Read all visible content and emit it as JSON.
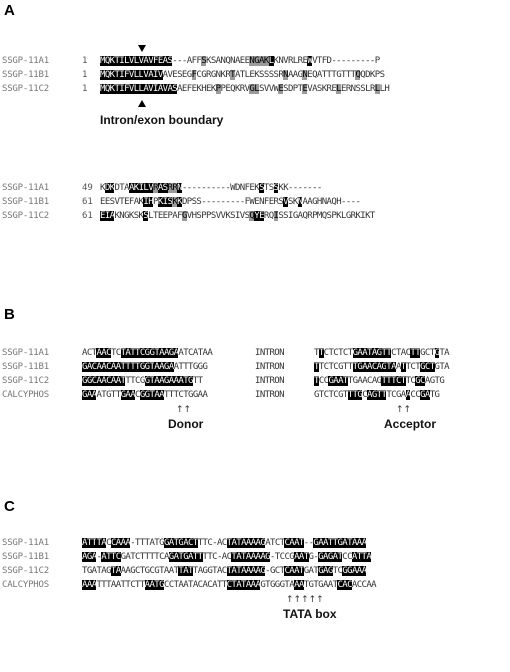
{
  "panels": {
    "a": {
      "label": "A",
      "block1": {
        "rows": [
          {
            "name": "SSGP-11A1",
            "start": "1",
            "segs": [
              [
                "b",
                "MQKTILVL"
              ],
              [
                "b",
                "VAVFEAS"
              ],
              [
                "n",
                "---AFF"
              ],
              [
                "g",
                "S"
              ],
              [
                "n",
                "KSANQNAEE"
              ],
              [
                "g",
                "NGAK"
              ],
              [
                "b",
                "L"
              ],
              [
                "n",
                "KNVRLRE"
              ],
              [
                "b",
                "W"
              ],
              [
                "n",
                "VTFD---------P"
              ]
            ]
          },
          {
            "name": "SSGP-11B1",
            "start": "1",
            "segs": [
              [
                "b",
                "MQKTIFVLL"
              ],
              [
                "b",
                "VAIV"
              ],
              [
                "n",
                "AVESEG"
              ],
              [
                "g",
                "F"
              ],
              [
                "n",
                "CGRGNKR"
              ],
              [
                "g",
                "T"
              ],
              [
                "n",
                "ATLEKSSSSR"
              ],
              [
                "g",
                "N"
              ],
              [
                "n",
                "AAG"
              ],
              [
                "g",
                "N"
              ],
              [
                "n",
                "EQATTTGTTT"
              ],
              [
                "g",
                "Q"
              ],
              [
                "n",
                "QDKPS"
              ]
            ]
          },
          {
            "name": "SSGP-11C2",
            "start": "1",
            "segs": [
              [
                "b",
                "MQKTIFVLLAVI"
              ],
              [
                "b",
                "AVAS"
              ],
              [
                "n",
                "AEFEKHEK"
              ],
              [
                "g",
                "P"
              ],
              [
                "n",
                "PEQKRV"
              ],
              [
                "g",
                "GL"
              ],
              [
                "n",
                "SVVW"
              ],
              [
                "g",
                "E"
              ],
              [
                "n",
                "SDPT"
              ],
              [
                "g",
                "E"
              ],
              [
                "n",
                "VASKRE"
              ],
              [
                "g",
                "L"
              ],
              [
                "n",
                "ERNSSLR"
              ],
              [
                "g",
                "L"
              ],
              [
                "n",
                "LH"
              ]
            ]
          }
        ],
        "callout": "Intron/exon boundary"
      },
      "block2": {
        "rows": [
          {
            "name": "SSGP-11A1",
            "start": "49",
            "segs": [
              [
                "n",
                "K"
              ],
              [
                "b",
                "DK"
              ],
              [
                "n",
                "DTA"
              ],
              [
                "b",
                "AKILV"
              ],
              [
                "g",
                "R"
              ],
              [
                "b",
                "AS"
              ],
              [
                "g",
                "RR"
              ],
              [
                "b",
                "N"
              ],
              [
                "n",
                "----------WDNFEK"
              ],
              [
                "b",
                "S"
              ],
              [
                "n",
                "TS"
              ],
              [
                "b",
                "S"
              ],
              [
                "n",
                "KK-------"
              ]
            ]
          },
          {
            "name": "SSGP-11B1",
            "start": "61",
            "segs": [
              [
                "n",
                "EE"
              ],
              [
                "n",
                "SVTEFAK"
              ],
              [
                "b",
                "IH"
              ],
              [
                "n",
                "P"
              ],
              [
                "b",
                "KIS"
              ],
              [
                "g",
                "K"
              ],
              [
                "b",
                "K"
              ],
              [
                "n",
                "DPSS---------FWENFERS"
              ],
              [
                "b",
                "V"
              ],
              [
                "n",
                "SK"
              ],
              [
                "b",
                "N"
              ],
              [
                "n",
                "AAGHNAQH----"
              ]
            ]
          },
          {
            "name": "SSGP-11C2",
            "start": "61",
            "segs": [
              [
                "b",
                "EIA"
              ],
              [
                "n",
                "KNGKSK"
              ],
              [
                "b",
                "S"
              ],
              [
                "n",
                "LTEEPAF"
              ],
              [
                "g",
                "G"
              ],
              [
                "n",
                "VHSPPSVVKSIVS"
              ],
              [
                "g",
                "Q"
              ],
              [
                "b",
                "YE"
              ],
              [
                "n",
                "RQ"
              ],
              [
                "g",
                "I"
              ],
              [
                "n",
                "SSIGAQRPMQSPKLGRKIKT"
              ]
            ]
          }
        ]
      }
    },
    "b": {
      "label": "B",
      "rows": [
        {
          "name": "SSGP-11A1",
          "left": [
            [
              "n",
              "ACT"
            ],
            [
              "b",
              "AAC"
            ],
            [
              "n",
              "TC"
            ],
            [
              "b",
              "TATTCG"
            ],
            [
              "b",
              "GT"
            ],
            [
              "b",
              "AAGA"
            ],
            [
              "n",
              "ATCATAA"
            ]
          ],
          "intron": "INTRON",
          "right": [
            [
              "n",
              "T"
            ],
            [
              "b",
              "T"
            ],
            [
              "n",
              "CTCTCT"
            ],
            [
              "b",
              "GAAT"
            ],
            [
              "b",
              "AG"
            ],
            [
              "b",
              "TT"
            ],
            [
              "n",
              "CTAC"
            ],
            [
              "b",
              "TT"
            ],
            [
              "n",
              "GCT"
            ],
            [
              "b",
              "G"
            ],
            [
              "n",
              "TA"
            ]
          ]
        },
        {
          "name": "SSGP-11B1",
          "left": [
            [
              "b",
              "GACAACAATT"
            ],
            [
              "b",
              "TTG"
            ],
            [
              "b",
              "GT"
            ],
            [
              "b",
              "AAGA"
            ],
            [
              "n",
              "ATTTGGG"
            ]
          ],
          "intron": "INTRON",
          "right": [
            [
              "b",
              "T"
            ],
            [
              "n",
              "TCTCGTT"
            ],
            [
              "b",
              "TGAAC"
            ],
            [
              "b",
              "AG"
            ],
            [
              "b",
              "TA"
            ],
            [
              "n",
              "A"
            ],
            [
              "b",
              "T"
            ],
            [
              "n",
              "TCT"
            ],
            [
              "b",
              "GCT"
            ],
            [
              "n",
              "GTA"
            ]
          ]
        },
        {
          "name": "SSGP-11C2",
          "left": [
            [
              "b",
              "GGCAACAAT"
            ],
            [
              "n",
              "TTCG"
            ],
            [
              "b",
              "GT"
            ],
            [
              "b",
              "AAGA"
            ],
            [
              "b",
              "AATG"
            ],
            [
              "n",
              "TT"
            ]
          ],
          "intron": "INTRON",
          "right": [
            [
              "b",
              "T"
            ],
            [
              "n",
              "CC"
            ],
            [
              "b",
              "GAAT"
            ],
            [
              "n",
              "TGAACAG"
            ],
            [
              "b",
              "TT"
            ],
            [
              "b",
              "TCT"
            ],
            [
              "n",
              "TC"
            ],
            [
              "b",
              "GC"
            ],
            [
              "n",
              "AGTG"
            ]
          ]
        },
        {
          "name": "CALCYPHOS",
          "left": [
            [
              "b",
              "GAA"
            ],
            [
              "n",
              "ATGTT"
            ],
            [
              "b",
              "GAA"
            ],
            [
              "n",
              "C"
            ],
            [
              "b",
              "GGTAA"
            ],
            [
              "n",
              "TTTCTGGAA"
            ]
          ],
          "intron": "INTRON",
          "right": [
            [
              "n",
              "GTCTCGT"
            ],
            [
              "b",
              "TTG"
            ],
            [
              "n",
              "C"
            ],
            [
              "b",
              "AG"
            ],
            [
              "b",
              "TT"
            ],
            [
              "n",
              "TCGA"
            ],
            [
              "b",
              "A"
            ],
            [
              "n",
              "CC"
            ],
            [
              "b",
              "GA"
            ],
            [
              "n",
              "TG"
            ]
          ]
        }
      ],
      "donor_label": "Donor",
      "acceptor_label": "Acceptor",
      "donor_arrows": "↑↑",
      "acceptor_arrows": "↑↑"
    },
    "c": {
      "label": "C",
      "rows": [
        {
          "name": "SSGP-11A1",
          "segs": [
            [
              "b",
              "ATT"
            ],
            [
              "b",
              "TA"
            ],
            [
              "n",
              "C"
            ],
            [
              "b",
              "CAAA"
            ],
            [
              "n",
              "-TTTATG"
            ],
            [
              "b",
              "GATG"
            ],
            [
              "b",
              "ACT"
            ],
            [
              "n",
              "TTC-"
            ],
            [
              "n",
              "AC"
            ],
            [
              "b",
              "TATAA"
            ],
            [
              "b",
              "AAG"
            ],
            [
              "n",
              "ATCT"
            ],
            [
              "b",
              "CAAT"
            ],
            [
              "n",
              "--"
            ],
            [
              "b",
              "GAAT"
            ],
            [
              "b",
              "TGATAAA"
            ]
          ]
        },
        {
          "name": "SSGP-11B1",
          "segs": [
            [
              "b",
              "AGA"
            ],
            [
              "n",
              "-"
            ],
            [
              "b",
              "ATTC"
            ],
            [
              "n",
              "GATCTTTTCA"
            ],
            [
              "b",
              "GATGATT"
            ],
            [
              "n",
              "TTC-"
            ],
            [
              "n",
              "AC"
            ],
            [
              "b",
              "TATAA"
            ],
            [
              "b",
              "AAG"
            ],
            [
              "n",
              "-TCCG"
            ],
            [
              "b",
              "AAT"
            ],
            [
              "n",
              "G-"
            ],
            [
              "b",
              "GAGAT"
            ],
            [
              "n",
              "CC"
            ],
            [
              "b",
              "ATTA"
            ]
          ]
        },
        {
          "name": "SSGP-11C2",
          "segs": [
            [
              "n",
              "TGATAG"
            ],
            [
              "b",
              "TA"
            ],
            [
              "n",
              "AAGC"
            ],
            [
              "n",
              "TGCGTAAT"
            ],
            [
              "b",
              "TAT"
            ],
            [
              "n",
              "TAGGTAC"
            ],
            [
              "b",
              "TATAA"
            ],
            [
              "b",
              "AAG"
            ],
            [
              "n",
              "-GCT"
            ],
            [
              "b",
              "CAAT"
            ],
            [
              "n",
              "GAT"
            ],
            [
              "b",
              "GAG"
            ],
            [
              "n",
              "TC"
            ],
            [
              "b",
              "GGAAA"
            ]
          ]
        },
        {
          "name": "CALCYPHOS",
          "segs": [
            [
              "b",
              "AAA"
            ],
            [
              "n",
              "TTTAATTCTT"
            ],
            [
              "b",
              "AATG"
            ],
            [
              "n",
              "CCTAATACACATT"
            ],
            [
              "b",
              "CTATAA"
            ],
            [
              "b",
              "A"
            ],
            [
              "n",
              "GTGGGTA"
            ],
            [
              "b",
              "AA"
            ],
            [
              "n",
              "TGTGAAT"
            ],
            [
              "b",
              "CAC"
            ],
            [
              "n",
              "ACCAA"
            ]
          ]
        }
      ],
      "box_label": "TATA box",
      "arrows": "↑↑↑↑↑"
    }
  }
}
